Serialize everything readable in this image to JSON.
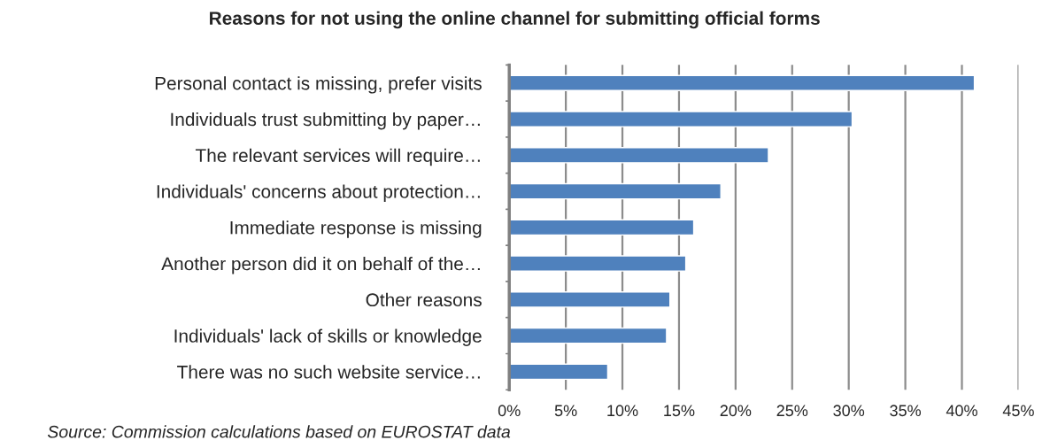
{
  "chart_data": {
    "type": "bar",
    "orientation": "horizontal",
    "title": "Reasons for not using the online channel for submitting official forms",
    "categories": [
      "Personal contact is missing, prefer visits",
      "Individuals trust submitting by paper…",
      "The relevant services will require…",
      "Individuals' concerns about protection…",
      "Immediate response is missing",
      "Another person did it on behalf of the…",
      "Other reasons",
      "Individuals' lack of skills or knowledge",
      "There was no such website service…"
    ],
    "values": [
      41.1,
      30.3,
      22.9,
      18.7,
      16.3,
      15.6,
      14.2,
      13.9,
      8.7
    ],
    "color": "#4f81bd",
    "xlim": [
      0,
      45
    ],
    "xticks": [
      {
        "value": 0,
        "label": "0%"
      },
      {
        "value": 5,
        "label": "5%"
      },
      {
        "value": 10,
        "label": "10%"
      },
      {
        "value": 15,
        "label": "15%"
      },
      {
        "value": 20,
        "label": "20%"
      },
      {
        "value": 25,
        "label": "25%"
      },
      {
        "value": 30,
        "label": "30%"
      },
      {
        "value": 35,
        "label": "35%"
      },
      {
        "value": 40,
        "label": "40%"
      },
      {
        "value": 45,
        "label": "45%"
      }
    ],
    "grid": "x",
    "legend": false,
    "annotations": [
      "Source: Commission calculations based on EUROSTAT data"
    ]
  }
}
